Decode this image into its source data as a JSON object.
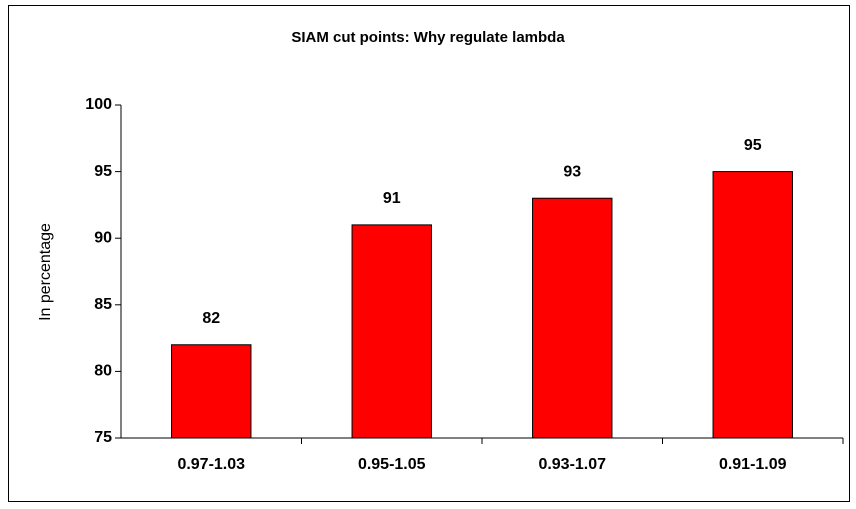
{
  "chart_data": {
    "type": "bar",
    "title": "SIAM cut points: Why regulate lambda",
    "y_label": "In percentage",
    "categories": [
      "0.97-1.03",
      "0.95-1.05",
      "0.93-1.07",
      "0.91-1.09"
    ],
    "values": [
      82,
      91,
      93,
      95
    ],
    "color": "#ff0000",
    "ylim": [
      75,
      100
    ],
    "yticks": [
      75,
      80,
      85,
      90,
      95,
      100
    ],
    "grid": false
  }
}
